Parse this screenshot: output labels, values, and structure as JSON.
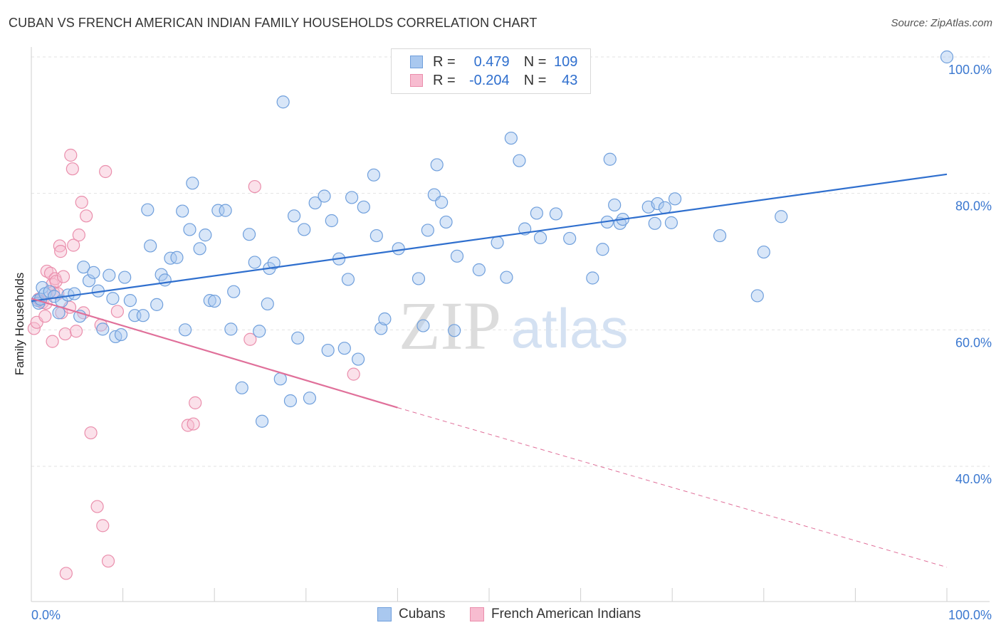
{
  "title": "CUBAN VS FRENCH AMERICAN INDIAN FAMILY HOUSEHOLDS CORRELATION CHART",
  "source": "Source: ZipAtlas.com",
  "colors": {
    "blue_fill": "#a9c8ef",
    "blue_stroke": "#6f9fdc",
    "blue_line": "#2f6fce",
    "pink_fill": "#f7bcd0",
    "pink_stroke": "#ea8eac",
    "pink_line": "#e0709a",
    "tick_label": "#3b78d0"
  },
  "legend": {
    "r_label": "R =",
    "n_label": "N =",
    "rows": [
      {
        "r": "0.479",
        "n": "109",
        "color": "#a9c8ef"
      },
      {
        "r": "-0.204",
        "n": "43",
        "color": "#f7bcd0"
      }
    ]
  },
  "bottom_legend": [
    {
      "label": "Cubans",
      "color": "#a9c8ef"
    },
    {
      "label": "French American Indians",
      "color": "#f7bcd0"
    }
  ],
  "watermark": {
    "zip": "ZIP",
    "atlas": "atlas"
  },
  "chart_data": {
    "type": "scatter",
    "title": "CUBAN VS FRENCH AMERICAN INDIAN FAMILY HOUSEHOLDS CORRELATION CHART",
    "xlabel": "",
    "ylabel": "Family Households",
    "xlim": [
      0,
      100
    ],
    "ylim": [
      22,
      102
    ],
    "x_tick_labels": [
      "0.0%",
      "100.0%"
    ],
    "y_ticks": [
      100,
      80,
      60,
      40
    ],
    "y_tick_labels": [
      "100.0%",
      "80.0%",
      "60.0%",
      "40.0%"
    ],
    "grid": true,
    "legend_position": "top-center",
    "series": [
      {
        "name": "Cubans",
        "r": 0.479,
        "n": 109,
        "trend": {
          "x0": 0,
          "y0": 64.2,
          "x1": 100,
          "y1": 82.8
        },
        "points": [
          [
            0.7,
            64.3
          ],
          [
            0.8,
            63.9
          ],
          [
            1,
            64.5
          ],
          [
            1.2,
            66.2
          ],
          [
            1.5,
            65.3
          ],
          [
            2,
            65.6
          ],
          [
            2.5,
            64.9
          ],
          [
            3,
            62.5
          ],
          [
            3.3,
            64.2
          ],
          [
            4,
            65.1
          ],
          [
            4.7,
            65.3
          ],
          [
            5.3,
            62
          ],
          [
            5.7,
            69.2
          ],
          [
            6.3,
            67.2
          ],
          [
            6.8,
            68.4
          ],
          [
            7.3,
            65.7
          ],
          [
            7.8,
            60.1
          ],
          [
            8.5,
            68
          ],
          [
            8.9,
            64.6
          ],
          [
            9.2,
            59
          ],
          [
            9.8,
            59.3
          ],
          [
            10.2,
            67.7
          ],
          [
            10.8,
            64.3
          ],
          [
            11.3,
            62.1
          ],
          [
            12.2,
            62.1
          ],
          [
            12.7,
            77.6
          ],
          [
            13,
            72.3
          ],
          [
            13.7,
            63.7
          ],
          [
            14.2,
            68.1
          ],
          [
            14.6,
            67.3
          ],
          [
            15.2,
            70.5
          ],
          [
            15.9,
            70.6
          ],
          [
            16.5,
            77.4
          ],
          [
            16.8,
            60
          ],
          [
            17.3,
            74.7
          ],
          [
            17.6,
            81.5
          ],
          [
            18.4,
            71.9
          ],
          [
            19,
            73.9
          ],
          [
            19.5,
            64.3
          ],
          [
            20,
            64.2
          ],
          [
            20.4,
            77.5
          ],
          [
            21.2,
            77.5
          ],
          [
            21.8,
            60.1
          ],
          [
            22.1,
            65.6
          ],
          [
            23,
            51.5
          ],
          [
            23.8,
            74
          ],
          [
            24.4,
            69.9
          ],
          [
            24.9,
            59.8
          ],
          [
            25.2,
            46.6
          ],
          [
            25.8,
            63.8
          ],
          [
            26,
            69
          ],
          [
            26.5,
            69.8
          ],
          [
            27.2,
            52.8
          ],
          [
            27.5,
            93.4
          ],
          [
            28.3,
            49.6
          ],
          [
            28.7,
            76.7
          ],
          [
            29.1,
            58.8
          ],
          [
            29.8,
            74.7
          ],
          [
            30.4,
            50
          ],
          [
            31,
            78.6
          ],
          [
            32,
            79.6
          ],
          [
            32.4,
            57
          ],
          [
            32.8,
            76
          ],
          [
            33.6,
            70.4
          ],
          [
            34.2,
            57.3
          ],
          [
            34.6,
            67.4
          ],
          [
            35,
            79.4
          ],
          [
            35.7,
            55.7
          ],
          [
            36.3,
            78
          ],
          [
            37.4,
            82.7
          ],
          [
            37.7,
            73.8
          ],
          [
            38.2,
            60.2
          ],
          [
            38.6,
            61.6
          ],
          [
            40.1,
            71.9
          ],
          [
            42.3,
            67.5
          ],
          [
            42.8,
            60.6
          ],
          [
            43.3,
            74.6
          ],
          [
            44,
            79.8
          ],
          [
            44.3,
            84.2
          ],
          [
            44.8,
            78.7
          ],
          [
            45.3,
            75.8
          ],
          [
            46.2,
            59.9
          ],
          [
            46.5,
            70.8
          ],
          [
            48.9,
            68.8
          ],
          [
            50.9,
            72.8
          ],
          [
            51.9,
            67.7
          ],
          [
            52.4,
            88.1
          ],
          [
            53.3,
            84.8
          ],
          [
            53.9,
            74.8
          ],
          [
            55.2,
            77.1
          ],
          [
            55.6,
            73.5
          ],
          [
            57.3,
            77
          ],
          [
            58.8,
            73.4
          ],
          [
            61.3,
            67.6
          ],
          [
            62.4,
            71.8
          ],
          [
            62.9,
            75.8
          ],
          [
            63.2,
            85
          ],
          [
            63.7,
            78.3
          ],
          [
            64.3,
            75.6
          ],
          [
            64.6,
            76.2
          ],
          [
            67.4,
            78
          ],
          [
            68.1,
            75.6
          ],
          [
            68.4,
            78.5
          ],
          [
            69.2,
            77.9
          ],
          [
            69.9,
            75.7
          ],
          [
            70.3,
            79.2
          ],
          [
            75.2,
            73.8
          ],
          [
            79.3,
            65
          ],
          [
            80,
            71.4
          ],
          [
            81.9,
            76.6
          ],
          [
            100,
            100
          ]
        ]
      },
      {
        "name": "French American Indians",
        "r": -0.204,
        "n": 43,
        "trend": {
          "x0": 0,
          "y0": 64.6,
          "x1": 40,
          "y1": 48.6,
          "dashed_to": {
            "x": 100,
            "y": 25.2
          }
        },
        "points": [
          [
            0.3,
            60.2
          ],
          [
            0.6,
            61.1
          ],
          [
            0.8,
            64.5
          ],
          [
            1,
            64.2
          ],
          [
            1.2,
            64
          ],
          [
            1.5,
            62
          ],
          [
            1.6,
            63.9
          ],
          [
            1.7,
            68.6
          ],
          [
            2.1,
            68.3
          ],
          [
            2.3,
            66.7
          ],
          [
            2.3,
            58.3
          ],
          [
            2.4,
            65.5
          ],
          [
            2.6,
            67.5
          ],
          [
            2.7,
            67.1
          ],
          [
            2.9,
            65.3
          ],
          [
            3.1,
            72.3
          ],
          [
            3.2,
            71.5
          ],
          [
            3.3,
            62.5
          ],
          [
            3.5,
            67.8
          ],
          [
            3.7,
            59.4
          ],
          [
            3.8,
            24.3
          ],
          [
            4.2,
            63.3
          ],
          [
            4.3,
            85.6
          ],
          [
            4.5,
            83.6
          ],
          [
            4.6,
            72.4
          ],
          [
            4.9,
            59.8
          ],
          [
            5.2,
            73.9
          ],
          [
            5.5,
            78.7
          ],
          [
            5.7,
            62.5
          ],
          [
            6,
            76.7
          ],
          [
            6.5,
            44.9
          ],
          [
            7.2,
            34.1
          ],
          [
            7.6,
            60.7
          ],
          [
            7.8,
            31.3
          ],
          [
            8.1,
            83.2
          ],
          [
            8.4,
            26.1
          ],
          [
            9.4,
            62.7
          ],
          [
            17.1,
            46
          ],
          [
            17.7,
            46.2
          ],
          [
            17.9,
            49.3
          ],
          [
            23.9,
            58.6
          ],
          [
            24.4,
            81
          ],
          [
            35.2,
            53.5
          ]
        ]
      }
    ]
  }
}
